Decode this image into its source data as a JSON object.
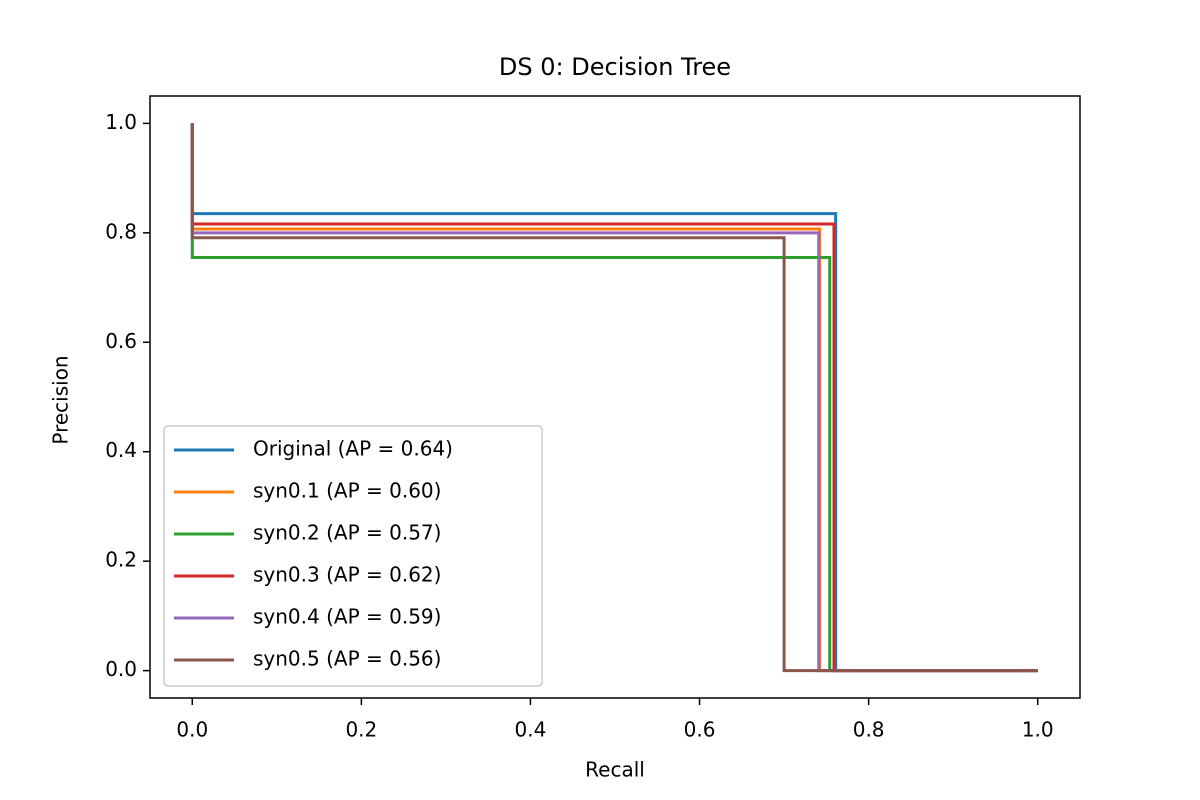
{
  "chart_data": {
    "type": "line",
    "title": "DS 0: Decision Tree",
    "x_label": "Recall",
    "y_label": "Precision",
    "xlim": [
      -0.05,
      1.05
    ],
    "ylim": [
      -0.05,
      1.05
    ],
    "xticks": [
      {
        "value": 0,
        "label": "0.0"
      },
      0.2,
      0.4,
      0.6,
      0.8,
      {
        "value": 1,
        "label": "1.0"
      }
    ],
    "yticks": [
      {
        "value": 0,
        "label": "0.0"
      },
      0.2,
      0.4,
      0.6,
      0.8,
      {
        "value": 1,
        "label": "1.0"
      }
    ],
    "grid": false,
    "legend": "lower left",
    "series": [
      {
        "name": "Original (AP = 0.64)",
        "color": "#1f77b4",
        "x": [
          0,
          0,
          0.761,
          0.761,
          1
        ],
        "values": [
          1,
          0.835,
          0.835,
          0,
          0
        ]
      },
      {
        "name": "syn0.1 (AP = 0.60)",
        "color": "#ff7f0e",
        "x": [
          0,
          0,
          0.742,
          0.742,
          1
        ],
        "values": [
          1,
          0.807,
          0.807,
          0,
          0
        ]
      },
      {
        "name": "syn0.2 (AP = 0.57)",
        "color": "#2ca02c",
        "x": [
          0,
          0,
          0.754,
          0.754,
          1
        ],
        "values": [
          1,
          0.755,
          0.755,
          0,
          0
        ]
      },
      {
        "name": "syn0.3 (AP = 0.62)",
        "color": "#d62728",
        "x": [
          0,
          0,
          0.759,
          0.759,
          1
        ],
        "values": [
          1,
          0.816,
          0.816,
          0,
          0
        ]
      },
      {
        "name": "syn0.4 (AP = 0.59)",
        "color": "#9467bd",
        "x": [
          0,
          0,
          0.741,
          0.741,
          1
        ],
        "values": [
          1,
          0.8,
          0.8,
          0,
          0
        ]
      },
      {
        "name": "syn0.5 (AP = 0.56)",
        "color": "#8c564b",
        "x": [
          0,
          0,
          0.7,
          0.7,
          1
        ],
        "values": [
          1,
          0.791,
          0.791,
          0,
          0
        ]
      }
    ]
  }
}
